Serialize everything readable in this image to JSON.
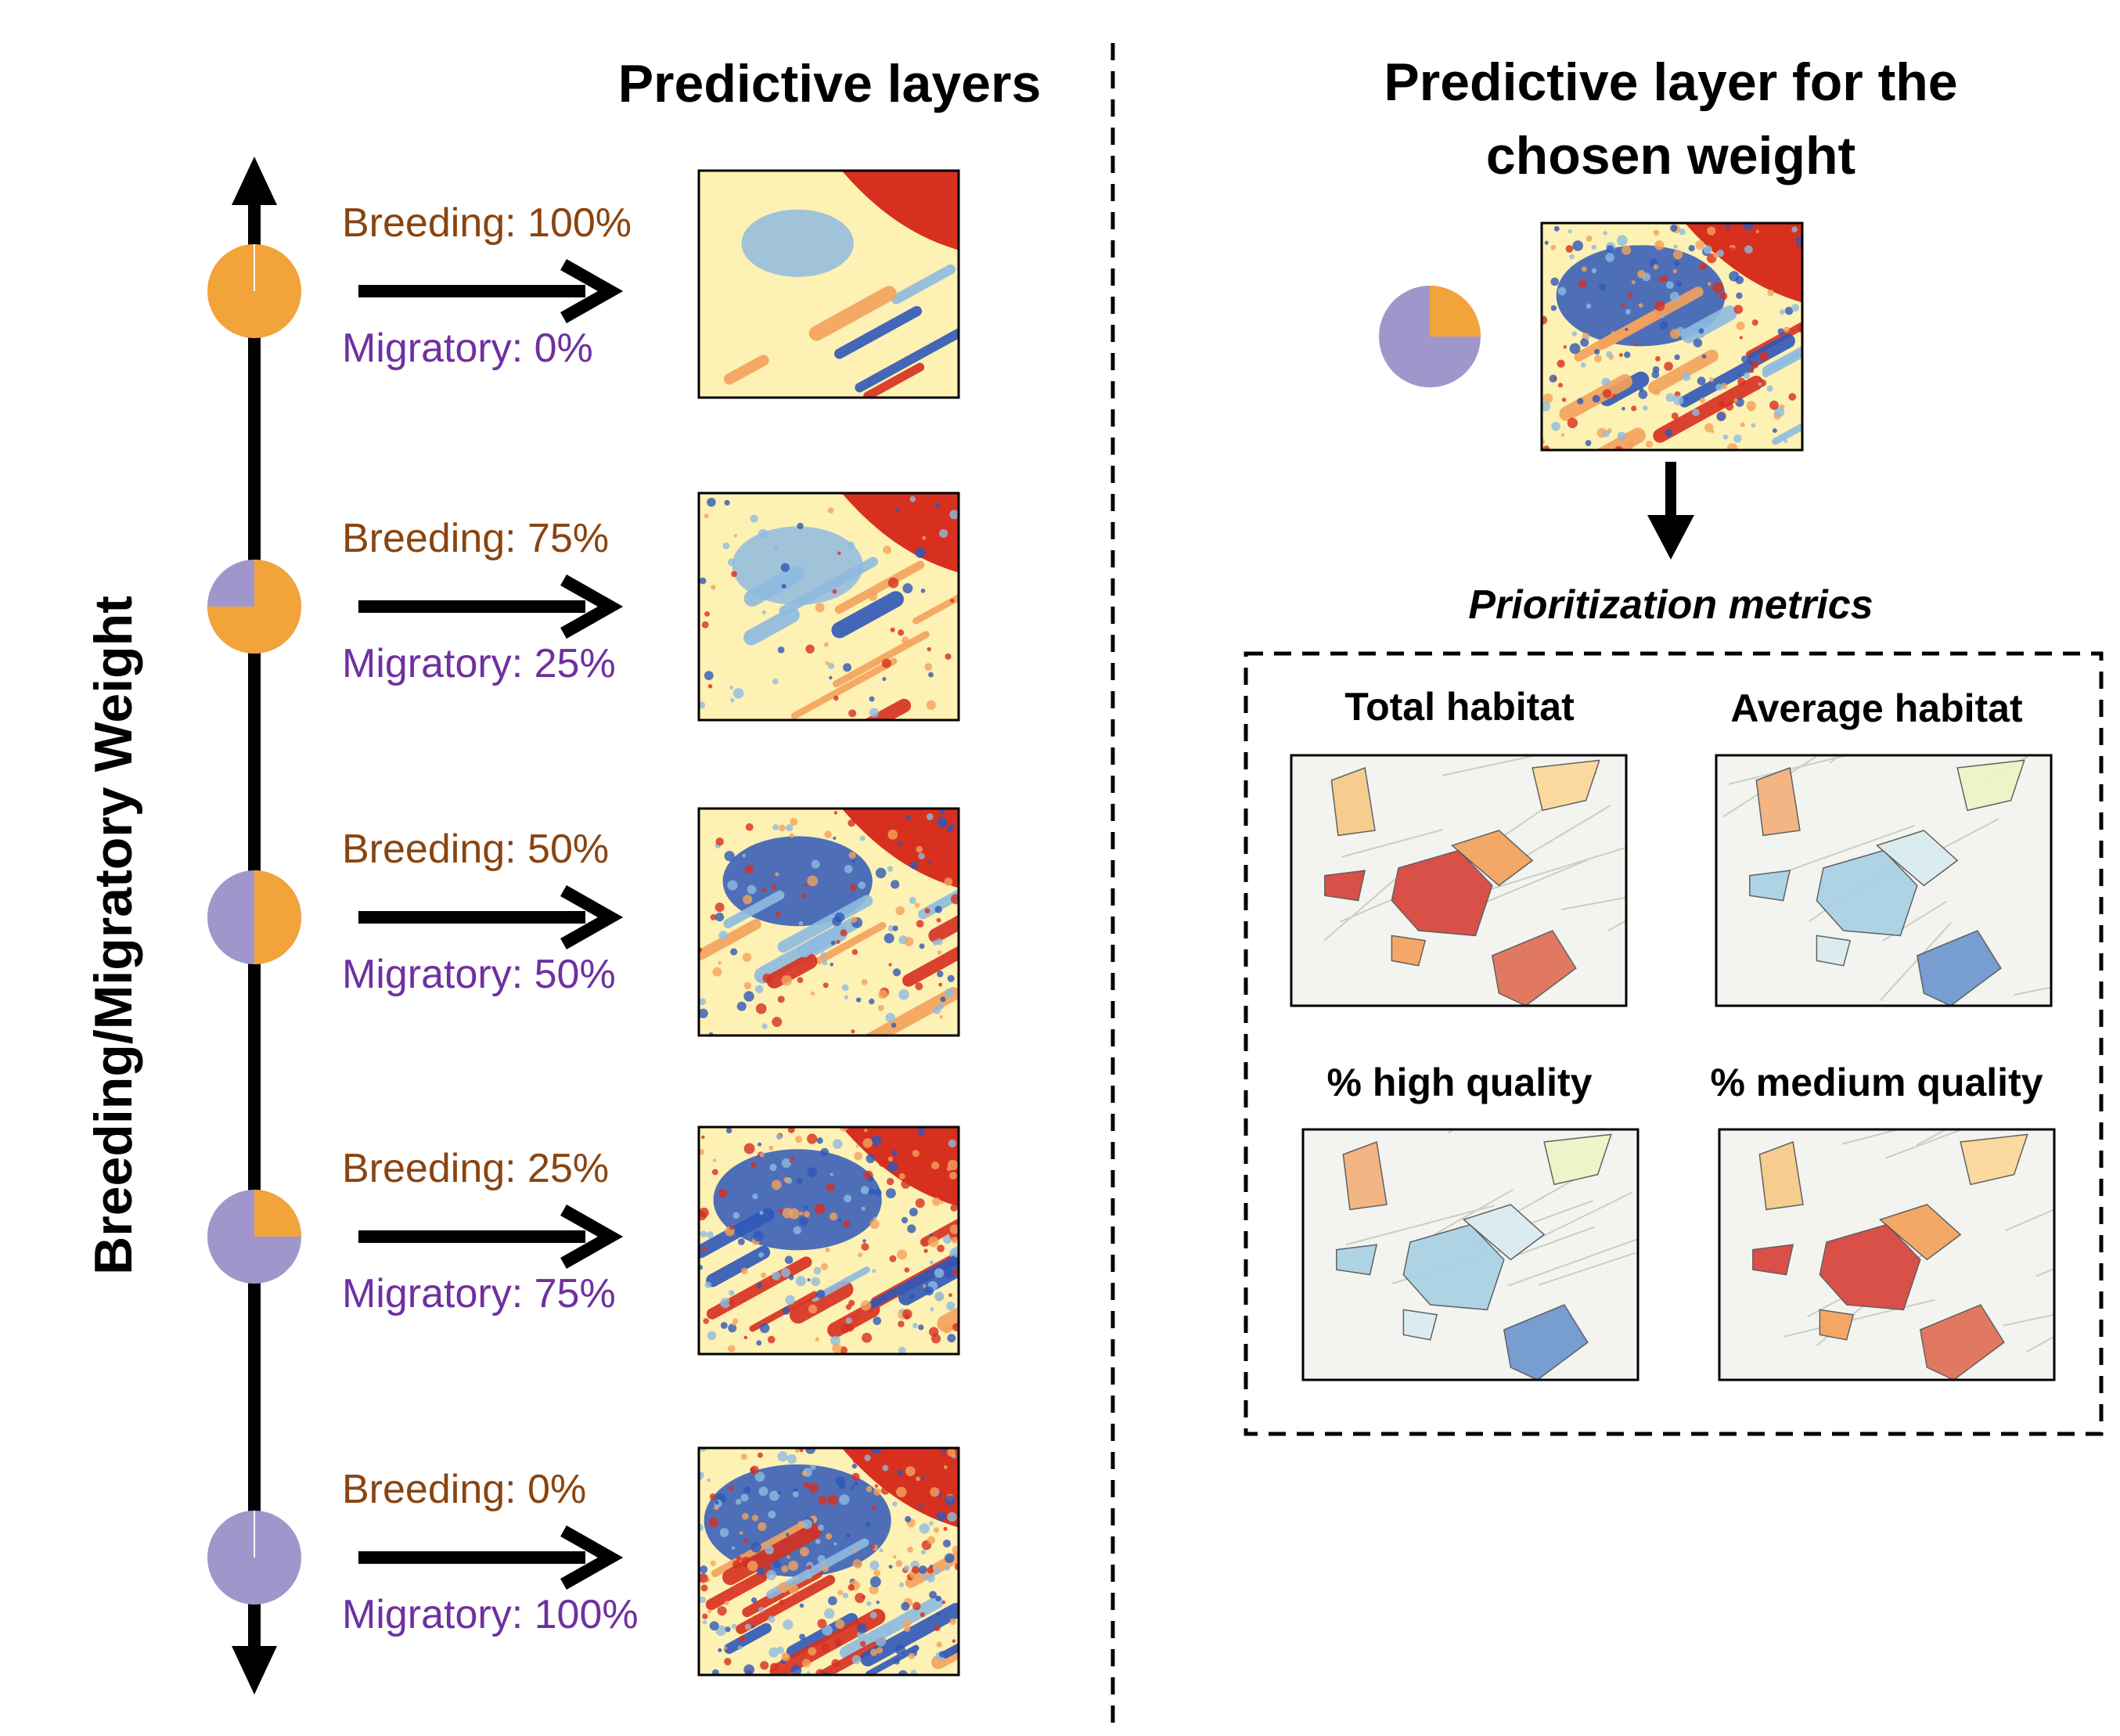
{
  "left_panel": {
    "title": "Predictive layers",
    "axis_label": "Breeding/Migratory Weight",
    "rows": [
      {
        "breeding_label": "Breeding: 100%",
        "migratory_label": "Migratory: 0%",
        "breeding_fraction": 1.0,
        "layer_icon": "heatmap-layer-100"
      },
      {
        "breeding_label": "Breeding: 75%",
        "migratory_label": "Migratory: 25%",
        "breeding_fraction": 0.75,
        "layer_icon": "heatmap-layer-75"
      },
      {
        "breeding_label": "Breeding: 50%",
        "migratory_label": "Migratory: 50%",
        "breeding_fraction": 0.5,
        "layer_icon": "heatmap-layer-50"
      },
      {
        "breeding_label": "Breeding: 25%",
        "migratory_label": "Migratory: 75%",
        "breeding_fraction": 0.25,
        "layer_icon": "heatmap-layer-25"
      },
      {
        "breeding_label": "Breeding: 0%",
        "migratory_label": "Migratory: 100%",
        "breeding_fraction": 0.0,
        "layer_icon": "heatmap-layer-0"
      }
    ]
  },
  "right_panel": {
    "title_line1": "Predictive layer for the",
    "title_line2": "chosen weight",
    "chosen_breeding_fraction": 0.25,
    "metrics_title": "Prioritization metrics",
    "metrics": [
      {
        "label": "Total habitat",
        "palette": "warm"
      },
      {
        "label": "Average habitat",
        "palette": "cool"
      },
      {
        "label": "% high quality",
        "palette": "cool"
      },
      {
        "label": "% medium quality",
        "palette": "warm"
      }
    ]
  },
  "colors": {
    "breeding": "#f2a33a",
    "migratory": "#9f97cc",
    "breeding_text": "#8a4410",
    "migratory_text": "#7030a0",
    "heat_red": "#d7301f",
    "heat_orange": "#f4a25c",
    "heat_yellow": "#fdf1b4",
    "heat_lightblue": "#8fbbe0",
    "heat_blue": "#2f58b8"
  }
}
